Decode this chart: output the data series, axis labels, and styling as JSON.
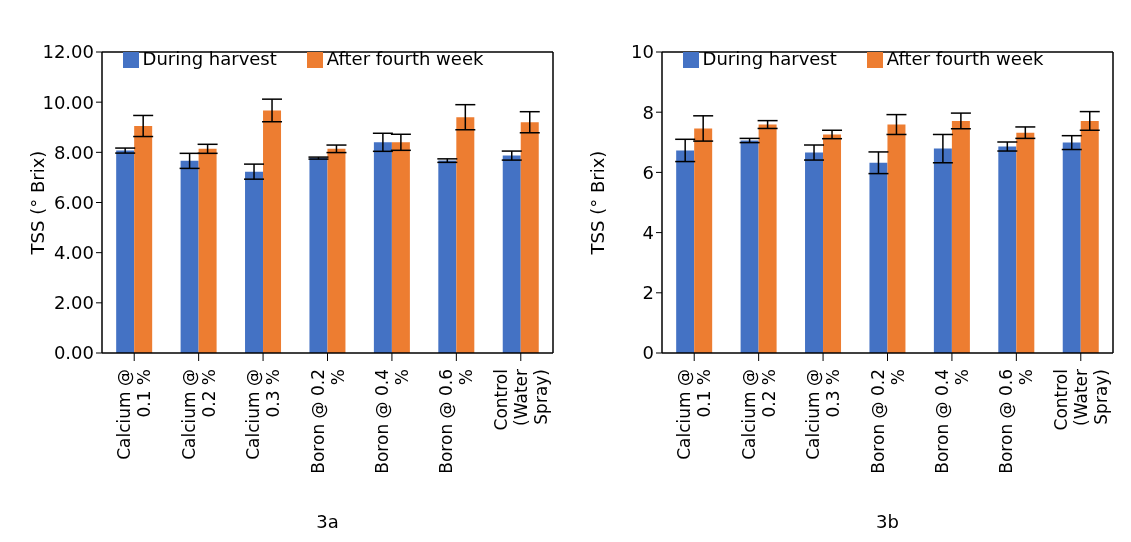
{
  "chart_data": [
    {
      "type": "bar",
      "xlabel": "3a",
      "ylabel": "TSS (° Brix)",
      "categories": [
        "Calcium  @ 0.1 %",
        "Calcium  @ 0.2 %",
        "Calcium  @ 0.3 %",
        "Boron @ 0.2 %",
        "Boron @ 0.4 %",
        "Boron @ 0.6 %",
        "Control (Water Spray)"
      ],
      "series": [
        {
          "name": "During harvest",
          "color": "#4472c4",
          "values": [
            8.07,
            7.66,
            7.23,
            7.77,
            8.4,
            7.67,
            7.87
          ],
          "errors": [
            0.1,
            0.3,
            0.3,
            0.04,
            0.36,
            0.07,
            0.18
          ]
        },
        {
          "name": "After fourth week",
          "color": "#ed7d31",
          "values": [
            9.05,
            8.14,
            9.67,
            8.14,
            8.4,
            9.4,
            9.2
          ],
          "errors": [
            0.42,
            0.18,
            0.45,
            0.15,
            0.32,
            0.5,
            0.42
          ]
        }
      ],
      "ylim": [
        0,
        12
      ],
      "yticks": [
        {
          "value": 0,
          "label": "0.00"
        },
        {
          "value": 2,
          "label": "2.00"
        },
        {
          "value": 4,
          "label": "4.00"
        },
        {
          "value": 6,
          "label": "6.00"
        },
        {
          "value": 8,
          "label": "8.00"
        },
        {
          "value": 10,
          "label": "10.00"
        },
        {
          "value": 12,
          "label": "12.00"
        }
      ],
      "grid": false,
      "legend": "top"
    },
    {
      "type": "bar",
      "xlabel": "3b",
      "ylabel": "TSS (° Brix)",
      "categories": [
        "Calcium  @ 0.1 %",
        "Calcium  @ 0.2 %",
        "Calcium  @ 0.3 %",
        "Boron @ 0.2 %",
        "Boron @ 0.4 %",
        "Boron @ 0.6 %",
        "Control (Water Spray)"
      ],
      "series": [
        {
          "name": "During harvest",
          "color": "#4472c4",
          "values": [
            6.73,
            7.06,
            6.66,
            6.32,
            6.79,
            6.86,
            6.99
          ],
          "errors": [
            0.37,
            0.07,
            0.25,
            0.36,
            0.47,
            0.15,
            0.23
          ]
        },
        {
          "name": "After fourth week",
          "color": "#ed7d31",
          "values": [
            7.46,
            7.59,
            7.26,
            7.59,
            7.71,
            7.32,
            7.71
          ],
          "errors": [
            0.42,
            0.13,
            0.14,
            0.33,
            0.26,
            0.19,
            0.31
          ]
        }
      ],
      "ylim": [
        0,
        10
      ],
      "yticks": [
        0,
        2,
        4,
        6,
        8,
        10
      ],
      "grid": false,
      "legend": "top"
    }
  ]
}
